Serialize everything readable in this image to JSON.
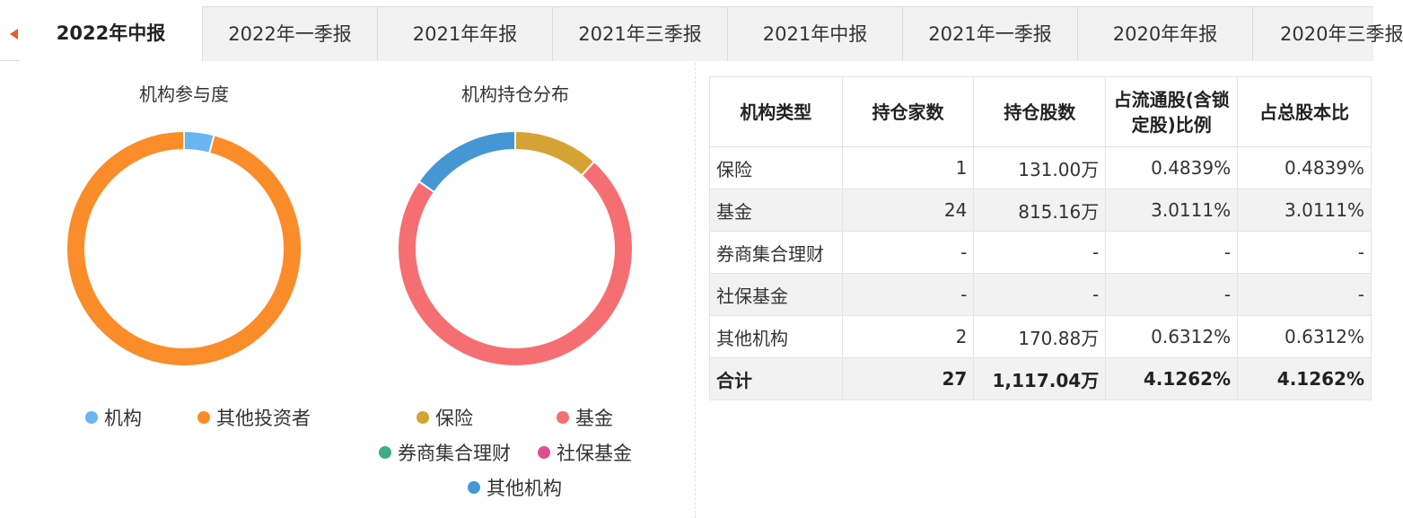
{
  "tabs": [
    {
      "label": "2022年中报",
      "active": true
    },
    {
      "label": "2022年一季报",
      "active": false
    },
    {
      "label": "2021年年报",
      "active": false
    },
    {
      "label": "2021年三季报",
      "active": false
    },
    {
      "label": "2021年中报",
      "active": false
    },
    {
      "label": "2021年一季报",
      "active": false
    },
    {
      "label": "2020年年报",
      "active": false
    },
    {
      "label": "2020年三季报",
      "active": false
    }
  ],
  "colors": {
    "accent": "#e85b2d",
    "institution": "#6ab4f0",
    "other_investors": "#fb8c2a",
    "insurance": "#d5a334",
    "fund": "#f56f72",
    "broker": "#3fae7f",
    "social_security": "#e24e8d",
    "other_institutions": "#4497d3"
  },
  "chart_data": [
    {
      "type": "pie",
      "title": "机构参与度",
      "categories": [
        "机构",
        "其他投资者"
      ],
      "values": [
        4.1262,
        95.8738
      ],
      "colors": [
        "#6ab4f0",
        "#fb8c2a"
      ],
      "legend_placement": "bottom"
    },
    {
      "type": "pie",
      "title": "机构持仓分布",
      "categories": [
        "保险",
        "基金",
        "券商集合理财",
        "社保基金",
        "其他机构"
      ],
      "values": [
        131.0,
        815.16,
        0,
        0,
        170.88
      ],
      "colors": [
        "#d5a334",
        "#f56f72",
        "#3fae7f",
        "#e24e8d",
        "#4497d3"
      ],
      "legend_placement": "bottom"
    }
  ],
  "table": {
    "headers": [
      "机构类型",
      "持仓家数",
      "持仓股数",
      "占流通股(含锁定股)比例",
      "占总股本比"
    ],
    "rows": [
      [
        "保险",
        "1",
        "131.00万",
        "0.4839%",
        "0.4839%"
      ],
      [
        "基金",
        "24",
        "815.16万",
        "3.0111%",
        "3.0111%"
      ],
      [
        "券商集合理财",
        "-",
        "-",
        "-",
        "-"
      ],
      [
        "社保基金",
        "-",
        "-",
        "-",
        "-"
      ],
      [
        "其他机构",
        "2",
        "170.88万",
        "0.6312%",
        "0.6312%"
      ],
      [
        "合计",
        "27",
        "1,117.04万",
        "4.1262%",
        "4.1262%"
      ]
    ]
  }
}
